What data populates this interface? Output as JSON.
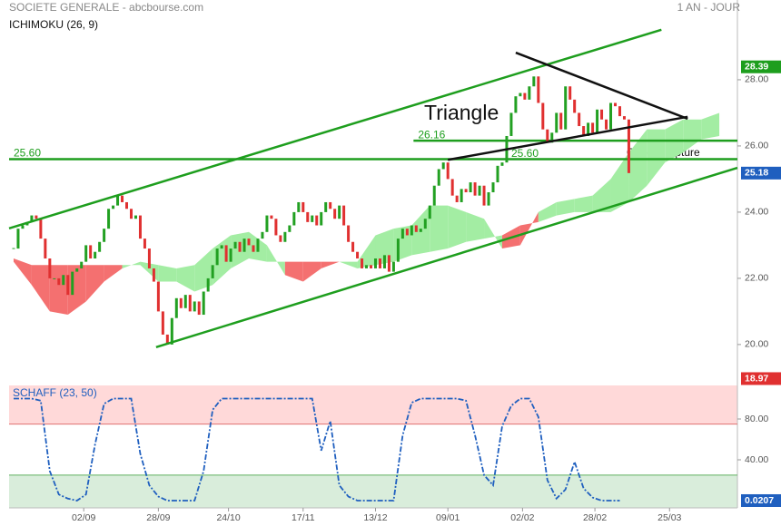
{
  "chart_data": [
    {
      "type": "candlestick",
      "title": "SOCIETE GENERALE - abcbourse.com",
      "subtitle": "1 AN - JOUR",
      "indicator": "ICHIMOKU (26, 9)",
      "xlim": [
        -1,
        160
      ],
      "ylim": [
        19.12,
        30.41
      ],
      "yticks": [
        {
          "value": 28,
          "label": "28.00"
        },
        {
          "value": 26,
          "label": "26.00"
        },
        {
          "value": 24,
          "label": "24.00"
        },
        {
          "value": 22,
          "label": "22.00"
        },
        {
          "value": 20,
          "label": "20.00"
        }
      ],
      "xticks": [
        {
          "value": 15.5,
          "label": "02/09"
        },
        {
          "value": 32,
          "label": "28/09"
        },
        {
          "value": 47.5,
          "label": "24/10"
        },
        {
          "value": 64,
          "label": "17/11"
        },
        {
          "value": 80,
          "label": "13/12"
        },
        {
          "value": 96,
          "label": "09/01"
        },
        {
          "value": 112.5,
          "label": "02/02"
        },
        {
          "value": 128.5,
          "label": "28/02"
        },
        {
          "value": 145,
          "label": "25/03"
        }
      ],
      "up_color": "#22a022",
      "down_color": "#e03030",
      "close": [
        22.9,
        23.5,
        23.6,
        23.7,
        23.9,
        23.8,
        23.2,
        22.6,
        22.0,
        22.0,
        21.8,
        22.1,
        21.5,
        22.2,
        22.3,
        22.5,
        23.0,
        22.6,
        22.8,
        23.1,
        23.5,
        24.1,
        24.2,
        24.5,
        24.3,
        24.1,
        23.8,
        23.9,
        23.2,
        22.9,
        22.3,
        21.9,
        21.0,
        20.3,
        20.0,
        20.8,
        21.4,
        21.1,
        21.5,
        21.0,
        21.3,
        20.9,
        21.6,
        22.0,
        22.4,
        22.9,
        23.0,
        22.5,
        22.9,
        23.1,
        22.8,
        23.2,
        23.0,
        22.8,
        23.2,
        23.4,
        23.9,
        23.8,
        23.3,
        23.1,
        23.4,
        23.6,
        24.0,
        24.3,
        24.0,
        23.7,
        23.9,
        23.6,
        24.0,
        24.3,
        24.1,
        23.8,
        24.2,
        23.6,
        23.1,
        22.8,
        22.6,
        22.3,
        22.4,
        22.3,
        22.6,
        22.3,
        22.7,
        22.2,
        22.5,
        23.2,
        23.5,
        23.3,
        23.6,
        23.4,
        23.5,
        23.8,
        24.2,
        24.8,
        25.3,
        25.5,
        25.0,
        24.5,
        24.3,
        24.7,
        24.6,
        24.9,
        24.5,
        24.8,
        24.2,
        24.6,
        24.9,
        25.4,
        25.5,
        26.3,
        27.0,
        27.5,
        27.6,
        27.4,
        27.8,
        28.1,
        27.3,
        26.5,
        26.1,
        26.4,
        27.0,
        26.5,
        27.8,
        27.4,
        27.0,
        26.6,
        26.3,
        26.7,
        26.4,
        27.1,
        26.8,
        26.5,
        27.3,
        27.2,
        26.9,
        26.8,
        25.18
      ],
      "cloud": {
        "up_color": "#a3eda3",
        "down_color": "#f47070",
        "x": [
          0,
          4,
          8,
          12,
          16,
          20,
          24,
          28,
          32,
          36,
          40,
          44,
          48,
          52,
          56,
          60,
          64,
          68,
          72,
          76,
          80,
          84,
          88,
          92,
          96,
          100,
          104,
          108,
          112,
          116,
          120,
          124,
          128,
          132,
          136,
          140,
          144,
          148,
          152,
          156
        ],
        "span_a": [
          22.5,
          21.8,
          21.0,
          20.9,
          21.3,
          21.9,
          22.3,
          22.5,
          22.4,
          22.3,
          22.4,
          22.9,
          23.3,
          23.4,
          23.0,
          22.1,
          21.9,
          22.3,
          22.5,
          22.5,
          23.3,
          23.5,
          23.6,
          24.2,
          24.2,
          24.0,
          23.8,
          22.9,
          23.0,
          24.0,
          24.3,
          24.4,
          24.5,
          25.0,
          25.8,
          26.5,
          26.5,
          26.8,
          26.8,
          27.0
        ],
        "span_b": [
          22.6,
          22.4,
          22.4,
          22.4,
          22.4,
          22.4,
          22.4,
          22.4,
          21.9,
          21.9,
          21.6,
          21.8,
          22.3,
          22.6,
          22.5,
          22.5,
          22.5,
          22.5,
          22.5,
          22.3,
          22.4,
          22.5,
          22.7,
          22.8,
          22.9,
          23.1,
          23.2,
          23.3,
          23.6,
          23.7,
          23.9,
          24.0,
          24.0,
          24.0,
          24.3,
          24.8,
          25.5,
          25.8,
          26.2,
          26.3
        ]
      },
      "lines": [
        {
          "x": [
            -1,
            143.2
          ],
          "y": [
            23.51,
            29.51
          ],
          "color": "#1e9e1e"
        },
        {
          "x": [
            31.5,
            160
          ],
          "y": [
            19.92,
            25.34
          ],
          "color": "#1e9e1e"
        },
        {
          "x": [
            111,
            149
          ],
          "y": [
            28.82,
            26.82
          ],
          "color": "#111111"
        },
        {
          "x": [
            96,
            149
          ],
          "y": [
            25.58,
            26.88
          ],
          "color": "#111111"
        }
      ],
      "levels": [
        {
          "value": 25.6,
          "label": "25.60",
          "x_from": -1,
          "color": "#1e9e1e"
        },
        {
          "value": 26.16,
          "label": "26.16",
          "x_from": 88.4,
          "color": "#1e9e1e"
        }
      ],
      "markers": [
        {
          "value": 28.39,
          "label": "28.39",
          "color": "#1e9e1e"
        },
        {
          "value": 25.18,
          "label": "25.18",
          "color": "#1f5fbf"
        },
        {
          "value": 18.97,
          "label": "18.97",
          "color": "#e03030"
        }
      ],
      "annotations": [
        "Triangle",
        "Gap de rupture"
      ]
    },
    {
      "type": "line",
      "title": "SCHAFF (23, 50)",
      "xlim": [
        -1,
        160
      ],
      "ylim": [
        -7.1,
        112.9
      ],
      "yticks": [
        {
          "value": 80,
          "label": "80.00"
        },
        {
          "value": 40,
          "label": "40.00"
        }
      ],
      "upper_level": 75,
      "lower_level": 25,
      "series": [
        {
          "color": "#1f5fbf",
          "x": [
            0,
            2,
            4,
            6,
            8,
            10,
            12,
            14,
            16,
            18,
            20,
            22,
            24,
            26,
            28,
            30,
            32,
            34,
            36,
            38,
            40,
            42,
            44,
            46,
            48,
            50,
            52,
            54,
            56,
            58,
            60,
            62,
            64,
            66,
            68,
            70,
            72,
            74,
            76,
            78,
            80,
            82,
            84,
            86,
            88,
            90,
            92,
            94,
            96,
            98,
            100,
            102,
            104,
            106,
            108,
            110,
            112,
            114,
            116,
            118,
            120,
            122,
            124,
            126,
            128,
            130,
            132,
            134
          ],
          "values": [
            100,
            100,
            100,
            98,
            29,
            6,
            2,
            0,
            6,
            55,
            95,
            100,
            100,
            100,
            46,
            15,
            4,
            0,
            0,
            0,
            0,
            29,
            89,
            100,
            100,
            100,
            100,
            100,
            100,
            100,
            100,
            100,
            100,
            100,
            49,
            78,
            15,
            4,
            0,
            0,
            0,
            0,
            0,
            64,
            96,
            100,
            100,
            100,
            100,
            100,
            98,
            64,
            25,
            15,
            73,
            93,
            100,
            100,
            82,
            20,
            2,
            11,
            38,
            12,
            3,
            0,
            0,
            0
          ]
        }
      ],
      "markers": [
        {
          "value": 0.0207,
          "label": "0.0207",
          "color": "#1f5fbf"
        }
      ]
    }
  ]
}
